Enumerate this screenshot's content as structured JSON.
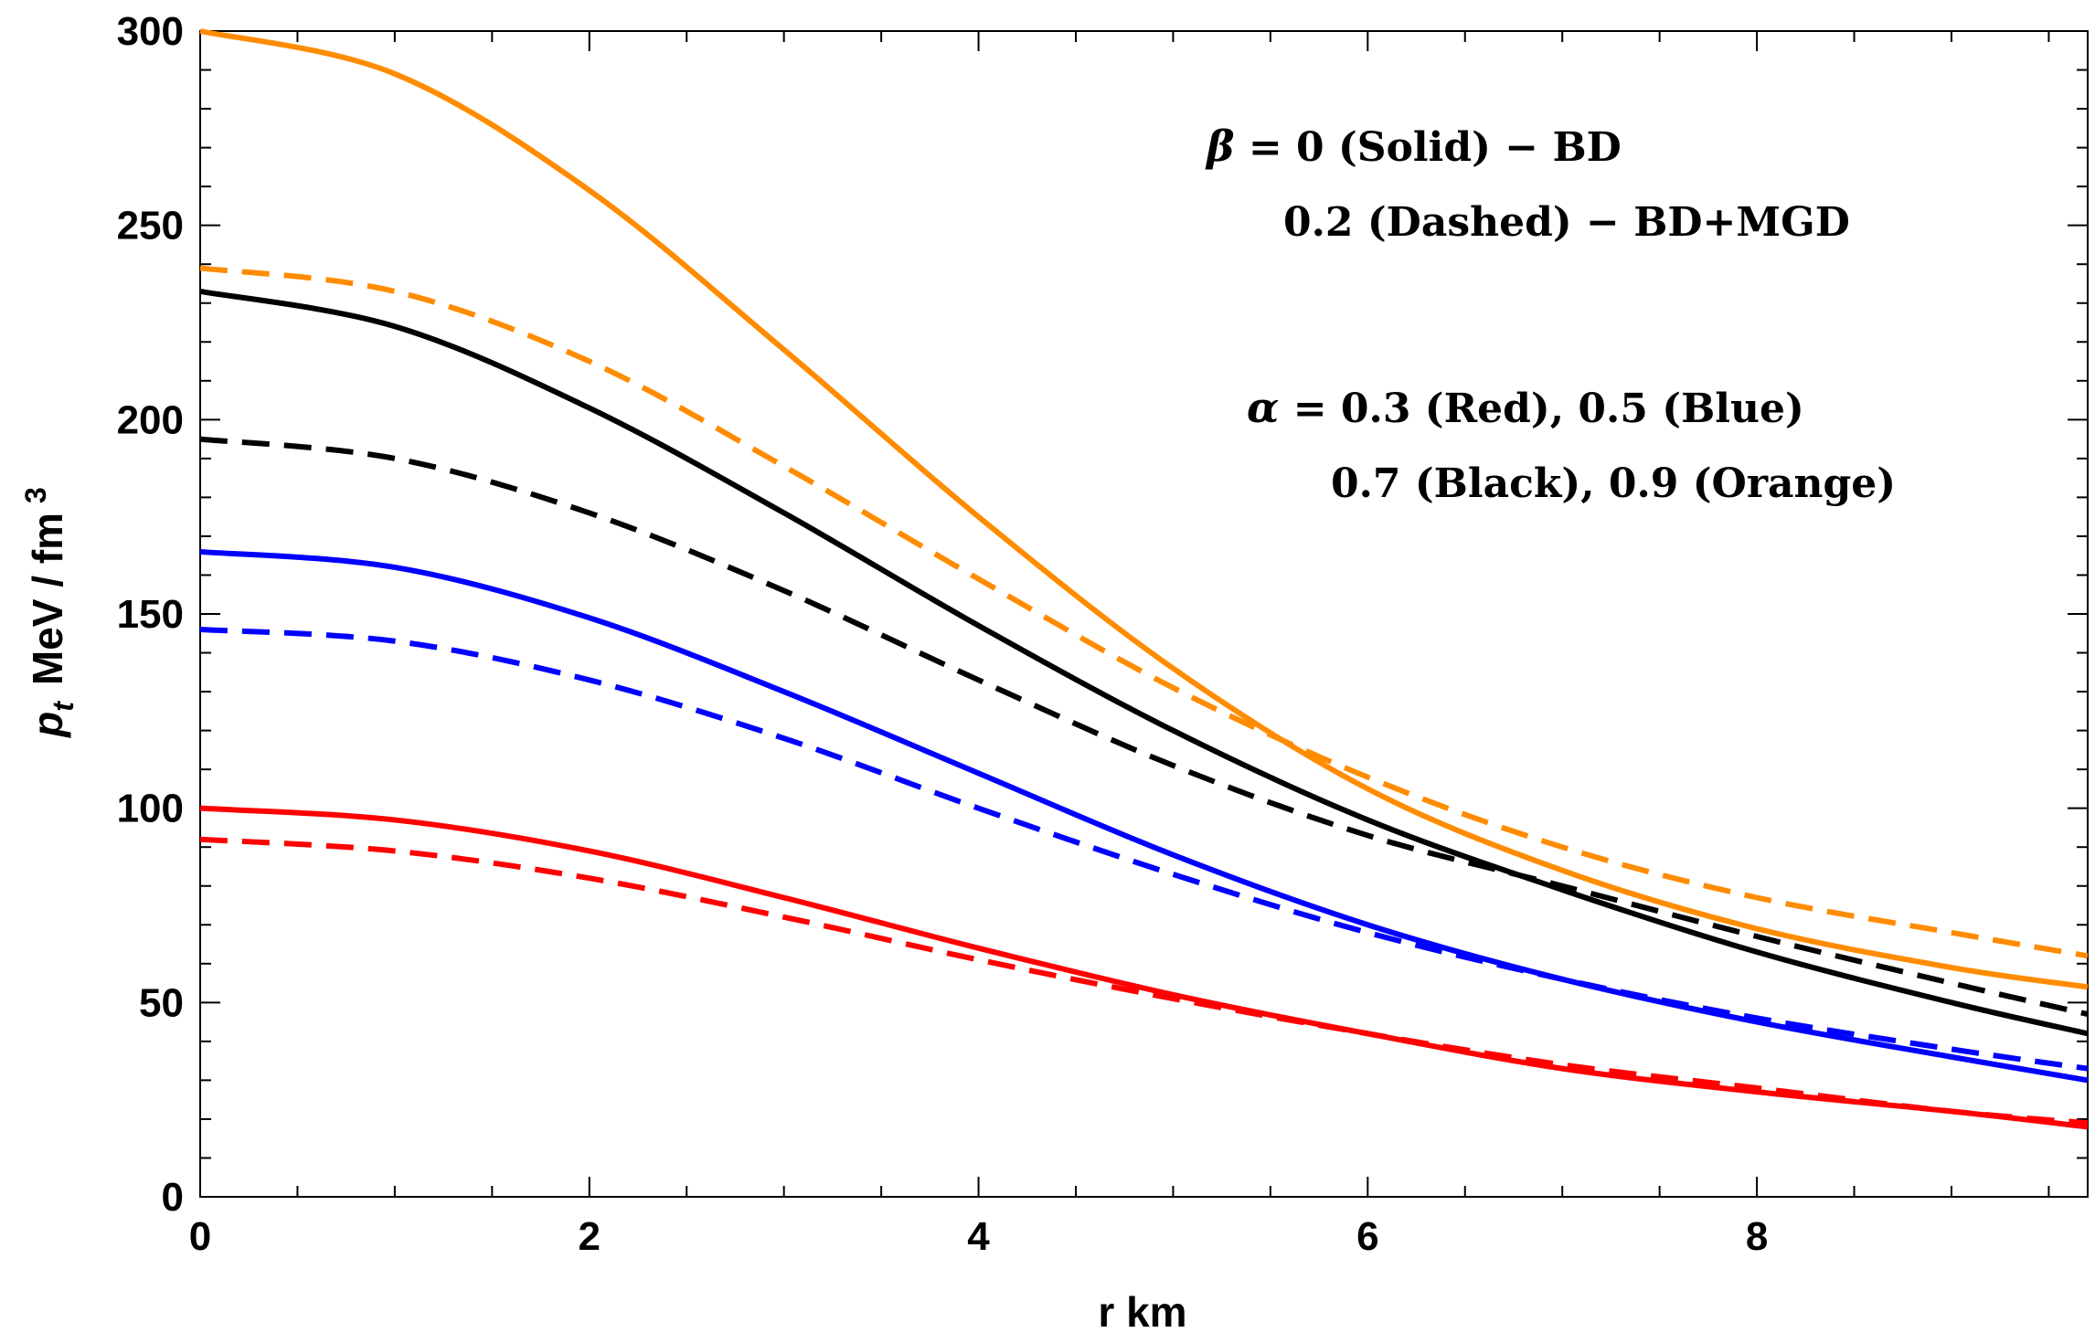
{
  "chart_data": {
    "type": "line",
    "title": "",
    "xlabel": "r  km",
    "ylabel": "p",
    "ylabel_sub": "t",
    "ylabel_unit": "MeV / fm",
    "ylabel_sup": "3",
    "xlim": [
      0,
      9.7
    ],
    "ylim": [
      0,
      300
    ],
    "x_ticks": [
      0,
      2,
      4,
      6,
      8
    ],
    "y_ticks": [
      0,
      50,
      100,
      150,
      200,
      250,
      300
    ],
    "grid": false,
    "legend_lines": [
      {
        "symbol": "β",
        "text": " = 0 (Solid) − BD"
      },
      {
        "symbol": "",
        "text": "0.2 (Dashed) − BD+MGD"
      },
      {
        "symbol": "α",
        "text": " = 0.3 (Red), 0.5 (Blue)"
      },
      {
        "symbol": "",
        "text": "0.7 (Black), 0.9 (Orange)"
      }
    ],
    "x": [
      0,
      1,
      2,
      3,
      4,
      5,
      6,
      7,
      8,
      9,
      9.7
    ],
    "series": [
      {
        "name": "alpha=0.9, beta=0",
        "color": "#FF8C00",
        "dash": "solid",
        "values": [
          300,
          289,
          259,
          218,
          175,
          136,
          105,
          84,
          69,
          59,
          54
        ]
      },
      {
        "name": "alpha=0.9, beta=0.2",
        "color": "#FF8C00",
        "dash": "dashed",
        "values": [
          239,
          233,
          215,
          188,
          159,
          131,
          108,
          90,
          77,
          68,
          62
        ]
      },
      {
        "name": "alpha=0.7, beta=0",
        "color": "#000000",
        "dash": "solid",
        "values": [
          233,
          224,
          203,
          176,
          147,
          120,
          97,
          79,
          63,
          50,
          42
        ]
      },
      {
        "name": "alpha=0.7, beta=0.2",
        "color": "#000000",
        "dash": "dashed",
        "values": [
          195,
          190,
          176,
          156,
          133,
          111,
          93,
          80,
          67,
          55,
          47
        ]
      },
      {
        "name": "alpha=0.5, beta=0",
        "color": "#0000FF",
        "dash": "solid",
        "values": [
          166,
          162,
          149,
          130,
          109,
          88,
          70,
          56,
          45,
          36,
          30
        ]
      },
      {
        "name": "alpha=0.5, beta=0.2",
        "color": "#0000FF",
        "dash": "dashed",
        "values": [
          146,
          143,
          133,
          118,
          100,
          83,
          68,
          56,
          46,
          38,
          33
        ]
      },
      {
        "name": "alpha=0.3, beta=0",
        "color": "#FF0000",
        "dash": "solid",
        "values": [
          100,
          97,
          89,
          77,
          64,
          52,
          42,
          33,
          27,
          22,
          18
        ]
      },
      {
        "name": "alpha=0.3, beta=0.2",
        "color": "#FF0000",
        "dash": "dashed",
        "values": [
          92,
          89,
          82,
          72,
          61,
          51,
          42,
          34,
          28,
          22,
          19
        ]
      }
    ]
  }
}
